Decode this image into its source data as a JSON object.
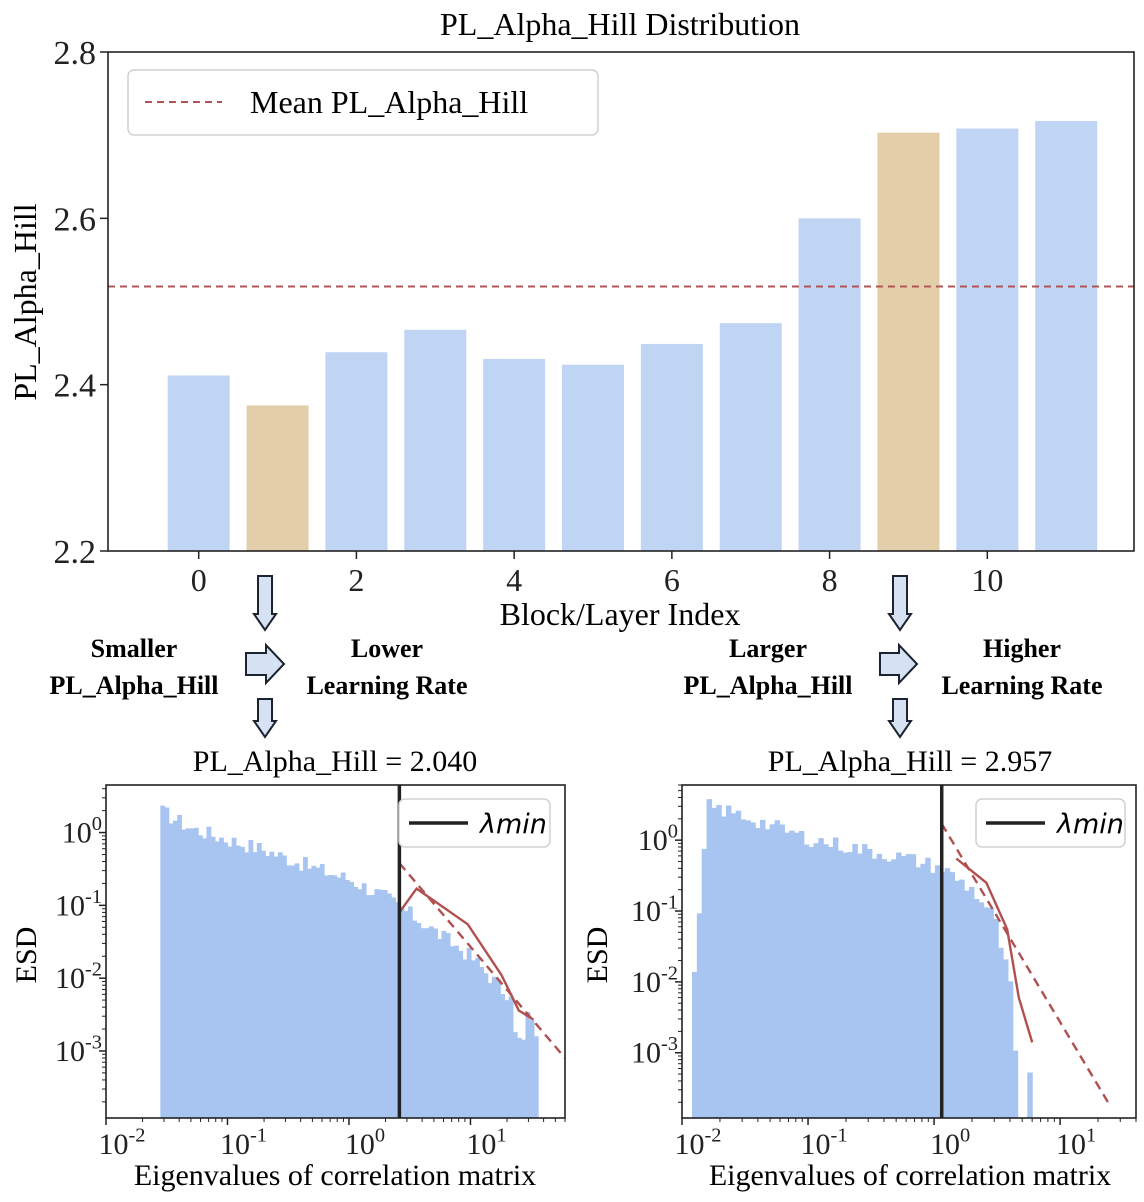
{
  "colors": {
    "bar": "#c0d4f4",
    "bar_highlight": "#e3ceaa",
    "hist": "#a8c4f0",
    "mean_line": "#b05555",
    "fit_line": "#b05050",
    "axis": "#222222",
    "arrow_fill": "#d6e2f4",
    "arrow_stroke": "#1b2430"
  },
  "annotations": {
    "left_cause": [
      "Smaller",
      "PL_Alpha_Hill"
    ],
    "left_effect": [
      "Lower",
      "Learning Rate"
    ],
    "right_cause": [
      "Larger",
      "PL_Alpha_Hill"
    ],
    "right_effect": [
      "Higher",
      "Learning Rate"
    ]
  },
  "chart_data": [
    {
      "type": "bar",
      "title": "PL_Alpha_Hill Distribution",
      "xlabel": "Block/Layer Index",
      "ylabel": "PL_Alpha_Hill",
      "x": [
        0,
        1,
        2,
        3,
        4,
        5,
        6,
        7,
        8,
        9,
        10,
        11
      ],
      "xticks": [
        "0",
        "2",
        "4",
        "6",
        "8",
        "10"
      ],
      "values": [
        2.411,
        2.375,
        2.439,
        2.466,
        2.431,
        2.424,
        2.449,
        2.474,
        2.6,
        2.703,
        2.708,
        2.717
      ],
      "highlighted": [
        1,
        9
      ],
      "ylim": [
        2.2,
        2.8
      ],
      "yticks": [
        "2.2",
        "2.4",
        "2.6",
        "2.8"
      ],
      "mean_line": 2.518,
      "legend": {
        "entries": [
          "Mean PL_Alpha_Hill"
        ],
        "position": "top-left"
      }
    },
    {
      "type": "histogram",
      "title": "PL_Alpha_Hill = 2.040",
      "xlabel": "Eigenvalues of correlation matrix",
      "ylabel": "ESD",
      "xscale": "log",
      "yscale": "log",
      "xlim": [
        0.01,
        60
      ],
      "ylim": [
        0.00012,
        4.5
      ],
      "xticks": [
        0.01,
        0.1,
        1,
        10
      ],
      "yticks": [
        0.001,
        0.01,
        0.1,
        1
      ],
      "lambda_min": 2.6,
      "legend": {
        "entries": [
          "λmin"
        ],
        "position": "top-right"
      },
      "hist": {
        "start": 0.028,
        "end": 36,
        "bins": 90,
        "shape": [
          [
            0.028,
            2.0
          ],
          [
            0.05,
            1.15
          ],
          [
            0.1,
            0.8
          ],
          [
            0.2,
            0.58
          ],
          [
            0.5,
            0.33
          ],
          [
            1.0,
            0.23
          ],
          [
            2.0,
            0.13
          ],
          [
            5.0,
            0.045
          ],
          [
            10,
            0.02
          ],
          [
            20,
            0.006
          ],
          [
            36,
            0.0018
          ]
        ]
      },
      "fit_curve": {
        "name": "ESD",
        "points": [
          [
            2.6,
            0.08
          ],
          [
            3.6,
            0.17
          ],
          [
            9.5,
            0.055
          ],
          [
            18,
            0.011
          ],
          [
            25,
            0.0036
          ],
          [
            33,
            0.0027
          ]
        ]
      },
      "powerlaw_fit": {
        "alpha": 2.04,
        "points": [
          [
            2.6,
            0.38
          ],
          [
            60,
            0.0008
          ]
        ]
      }
    },
    {
      "type": "histogram",
      "title": "PL_Alpha_Hill = 2.957",
      "xlabel": "Eigenvalues of correlation matrix",
      "ylabel": "ESD",
      "xscale": "log",
      "yscale": "log",
      "xlim": [
        0.01,
        40
      ],
      "ylim": [
        0.00012,
        6
      ],
      "xticks": [
        0.01,
        0.1,
        1,
        10
      ],
      "yticks": [
        0.001,
        0.01,
        0.1,
        1
      ],
      "lambda_min": 1.15,
      "legend": {
        "entries": [
          "λmin"
        ],
        "position": "top-right"
      },
      "hist": {
        "start": 0.012,
        "end": 6.0,
        "bins": 70,
        "cutoff": 4.2,
        "shape": [
          [
            0.012,
            0.004
          ],
          [
            0.016,
            3.0
          ],
          [
            0.03,
            2.2
          ],
          [
            0.1,
            1.05
          ],
          [
            0.3,
            0.7
          ],
          [
            0.6,
            0.55
          ],
          [
            1.15,
            0.4
          ],
          [
            2.0,
            0.2
          ],
          [
            3.0,
            0.08
          ],
          [
            4.2,
            0.006
          ]
        ]
      },
      "fit_curve": {
        "name": "ESD",
        "points": [
          [
            1.5,
            0.55
          ],
          [
            2.6,
            0.25
          ],
          [
            3.8,
            0.055
          ],
          [
            4.7,
            0.006
          ],
          [
            6.0,
            0.0014
          ]
        ]
      },
      "powerlaw_fit": {
        "alpha": 2.957,
        "points": [
          [
            1.15,
            1.7
          ],
          [
            24,
            0.0002
          ]
        ]
      }
    }
  ]
}
